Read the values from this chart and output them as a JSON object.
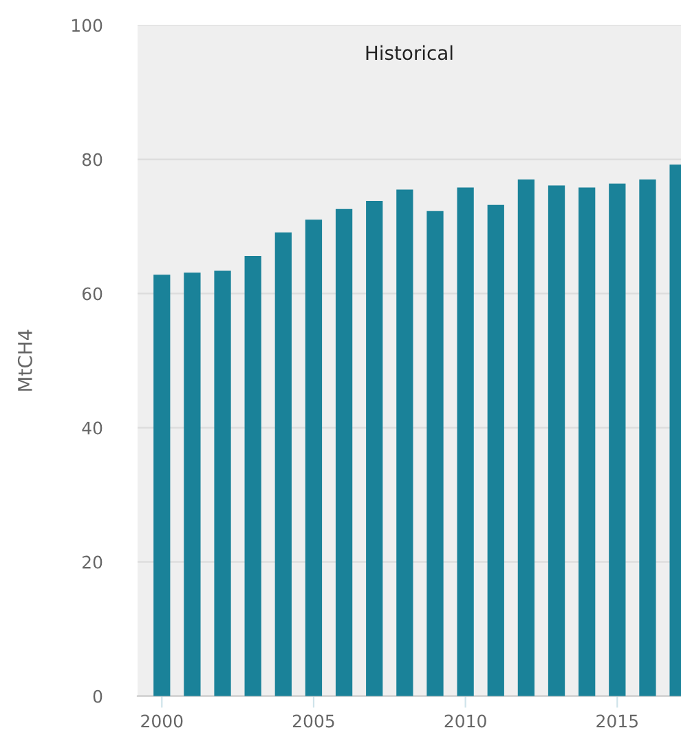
{
  "chart_data": {
    "type": "bar",
    "ylabel": "MtCH4",
    "x": [
      2000,
      2001,
      2002,
      2003,
      2004,
      2005,
      2006,
      2007,
      2008,
      2009,
      2010,
      2011,
      2012,
      2013,
      2014,
      2015,
      2016,
      2017
    ],
    "series": [
      {
        "color": "#1a8299",
        "values": [
          62.8,
          63.1,
          63.4,
          65.6,
          69.1,
          71.0,
          72.6,
          73.8,
          75.5,
          72.3,
          75.8,
          73.2,
          77.0,
          76.1,
          75.8,
          76.4,
          77.0,
          79.2
        ]
      }
    ],
    "xlim": [
      1999.2,
      2017.1
    ],
    "xticks": [
      2000,
      2005,
      2010,
      2015
    ],
    "ylim": [
      0,
      100
    ],
    "yticks": [
      0,
      20,
      40,
      60,
      80,
      100
    ],
    "bands": [
      {
        "axis": "x",
        "from": 1999.2,
        "to": 2017.1,
        "label": "Historical",
        "color": "#efefef"
      }
    ],
    "grid": "y",
    "legend": false
  }
}
